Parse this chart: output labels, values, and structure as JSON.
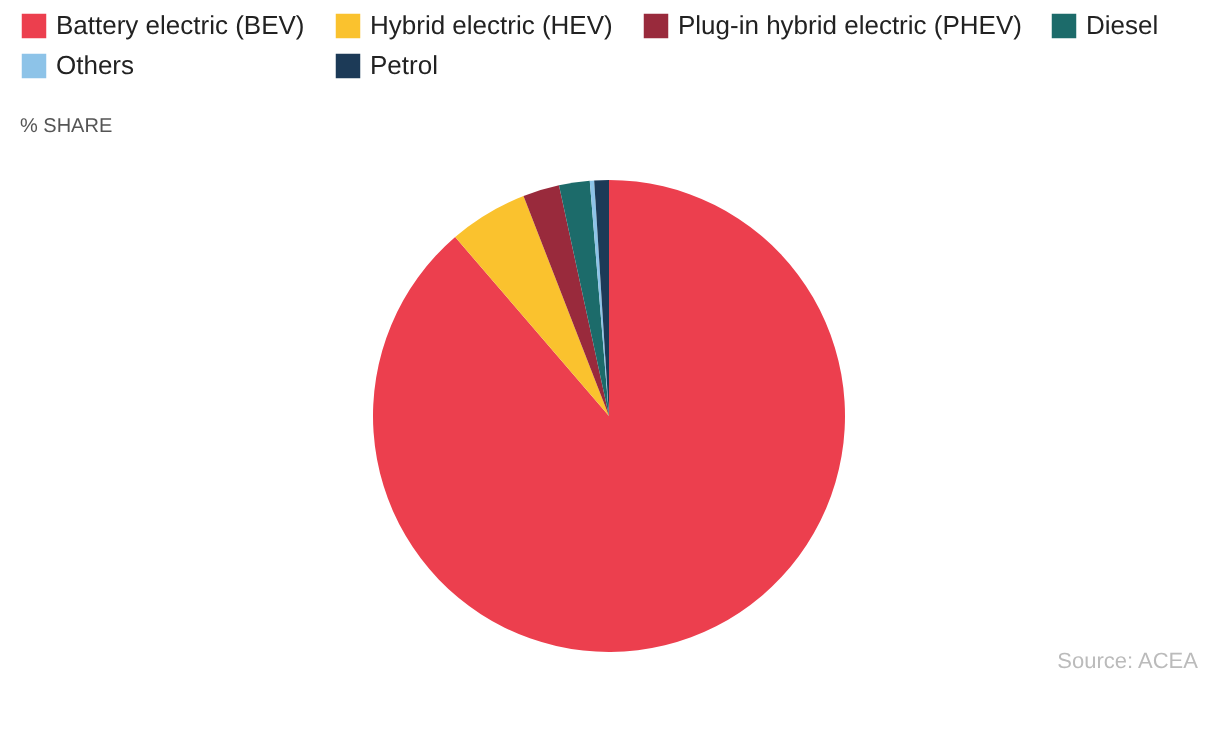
{
  "chart_data": {
    "type": "pie",
    "subtitle": "% SHARE",
    "annotations": [
      "Source:  ACEA"
    ],
    "legend": "top",
    "categories": [
      "Battery electric (BEV)",
      "Hybrid electric (HEV)",
      "Plug-in hybrid electric (PHEV)",
      "Diesel",
      "Others",
      "Petrol"
    ],
    "values": [
      88.7,
      5.4,
      2.5,
      2.1,
      0.3,
      1.0
    ],
    "colors": [
      "#ec3f4e",
      "#fac22e",
      "#992a3c",
      "#1c6b6a",
      "#8dc3e8",
      "#1c3a57"
    ]
  }
}
